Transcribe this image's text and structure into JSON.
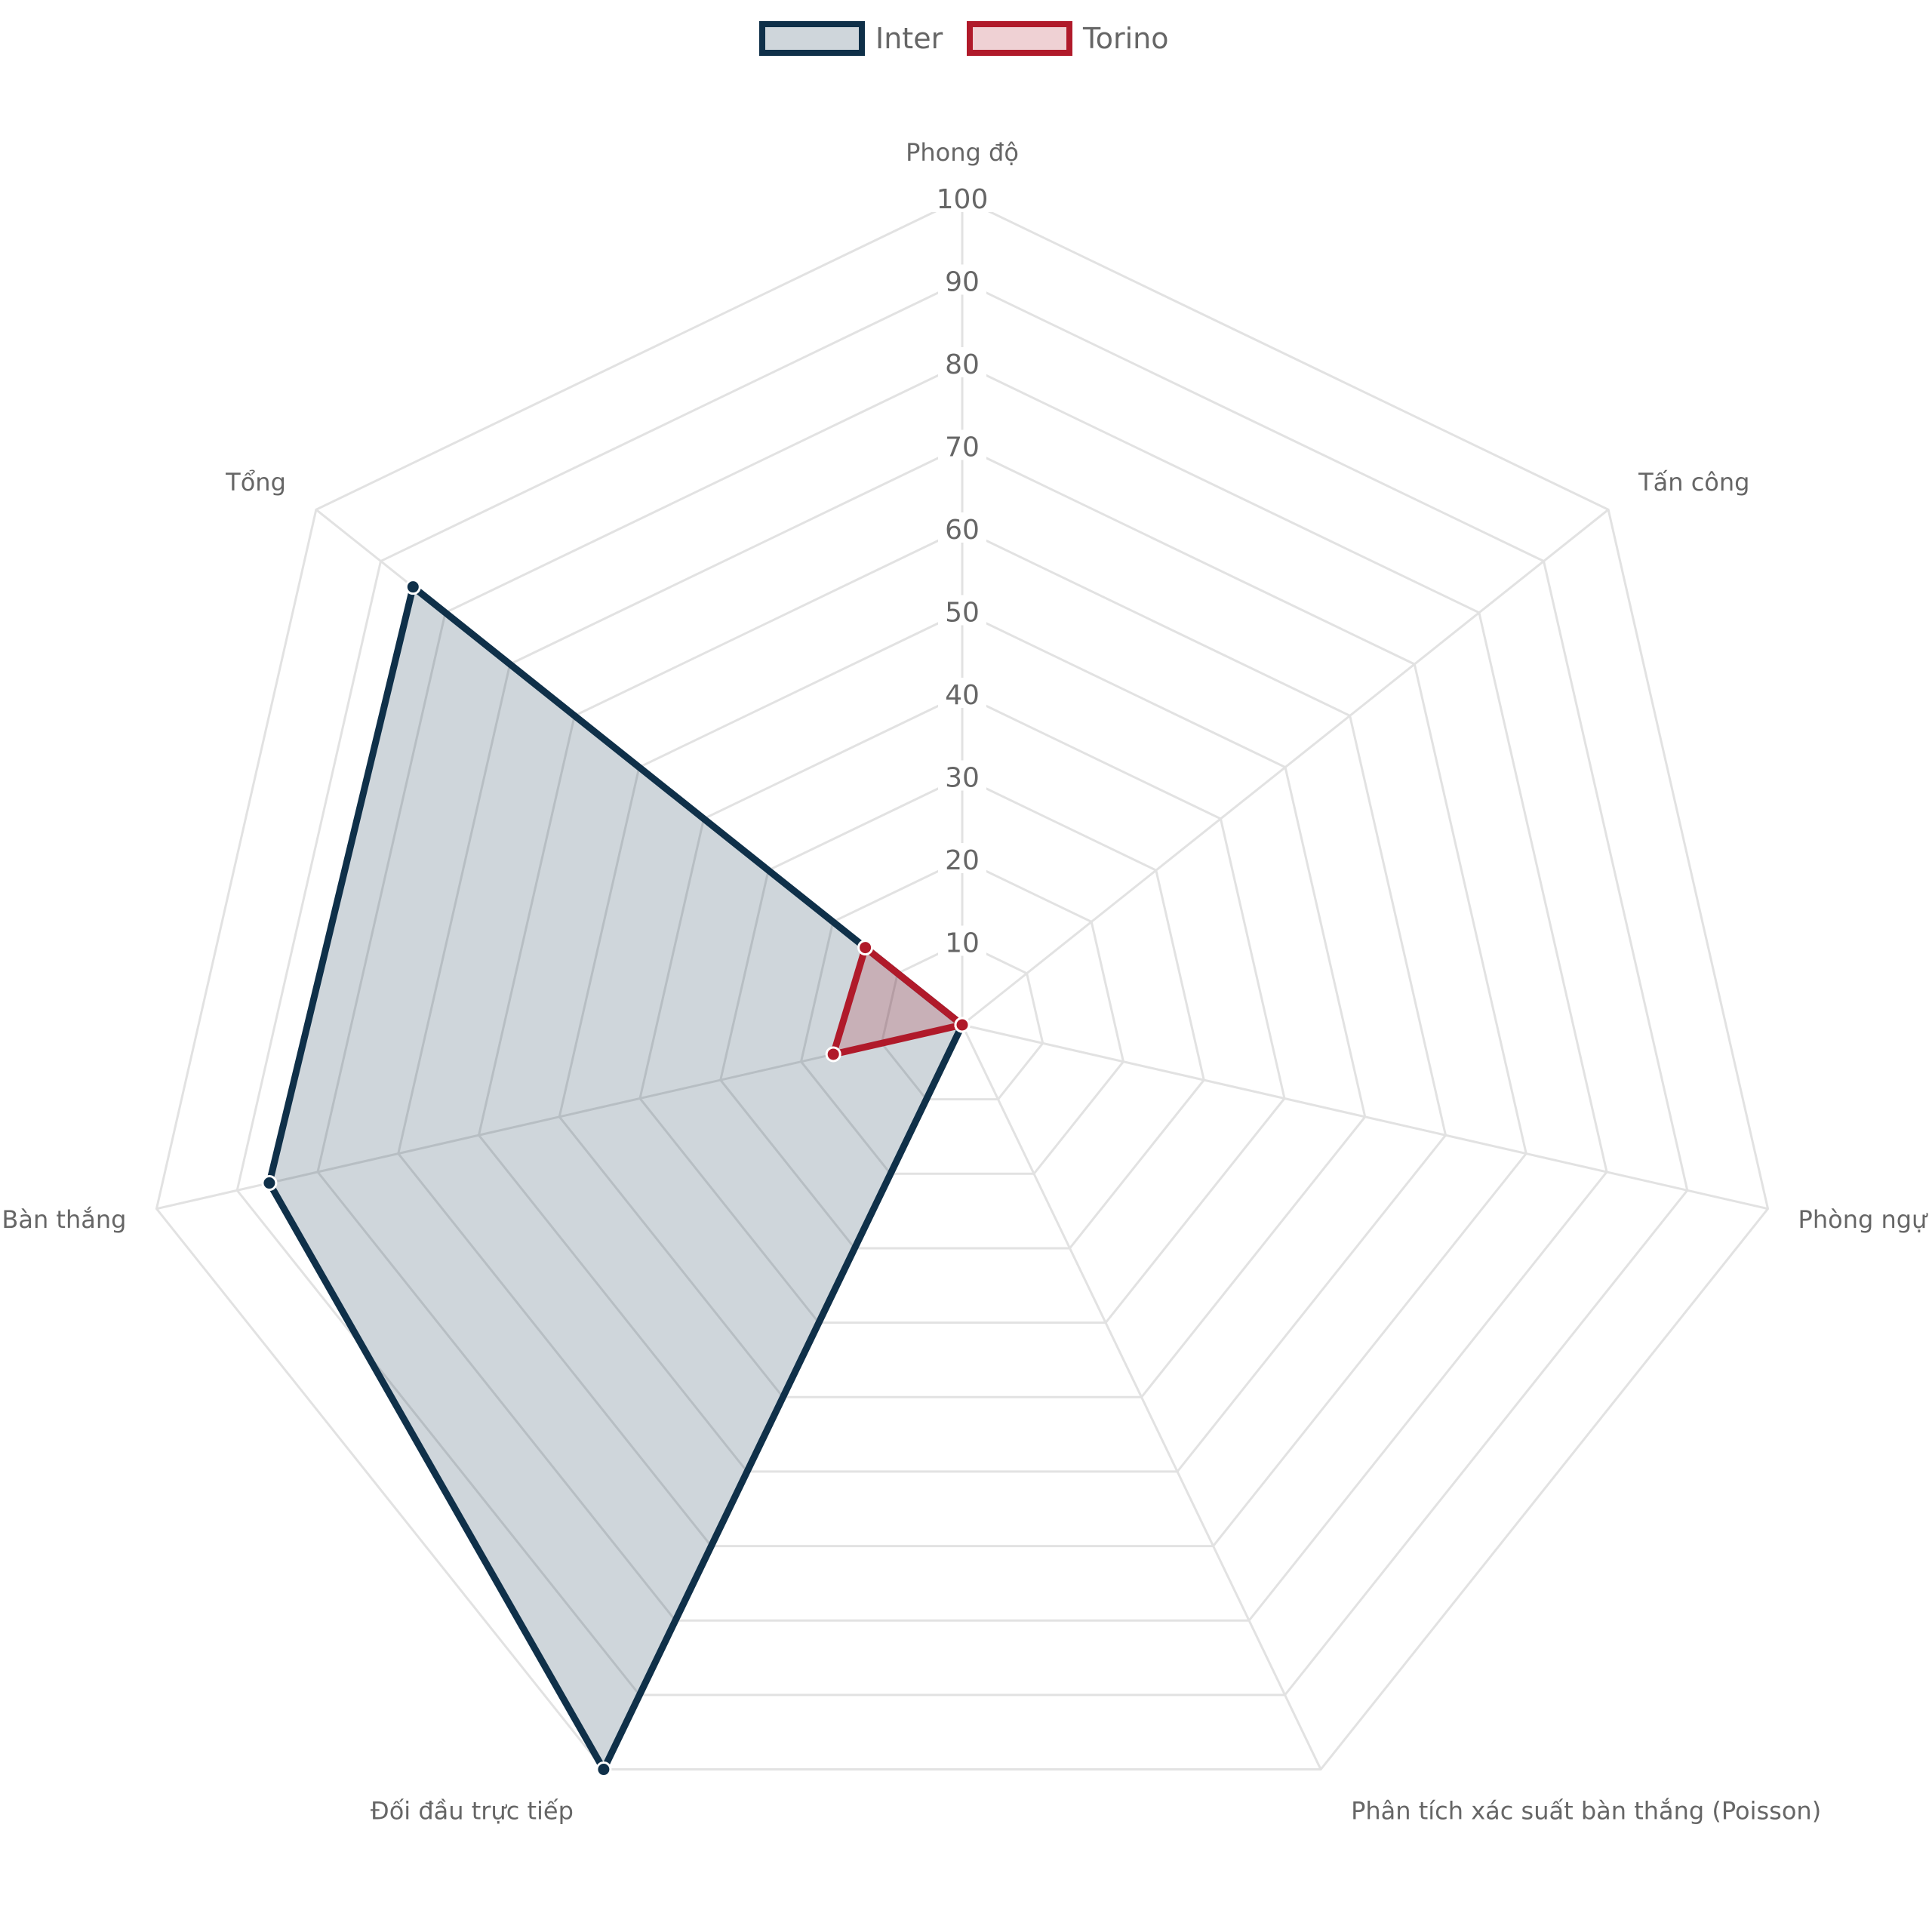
{
  "chart_data": {
    "type": "radar",
    "axes": [
      "Phong độ",
      "Tấn công",
      "Phòng ngự",
      "Phân tích xác suất bàn thắng (Poisson)",
      "Đối đầu trực tiếp",
      "Bàn thắng",
      "Tổng"
    ],
    "r_range": [
      0,
      100
    ],
    "ticks": [
      "10",
      "20",
      "30",
      "40",
      "50",
      "60",
      "70",
      "80",
      "90",
      "100"
    ],
    "grid": true,
    "legend_position": "top-center",
    "series": [
      {
        "name": "Inter",
        "values": [
          0,
          0,
          0,
          0,
          100,
          86,
          85
        ],
        "color": "#0f3049",
        "fill": "#0f3049"
      },
      {
        "name": "Torino",
        "values": [
          0,
          0,
          0,
          0,
          0,
          16,
          15
        ],
        "color": "#b01a2a",
        "fill": "#b01a2a"
      }
    ]
  }
}
